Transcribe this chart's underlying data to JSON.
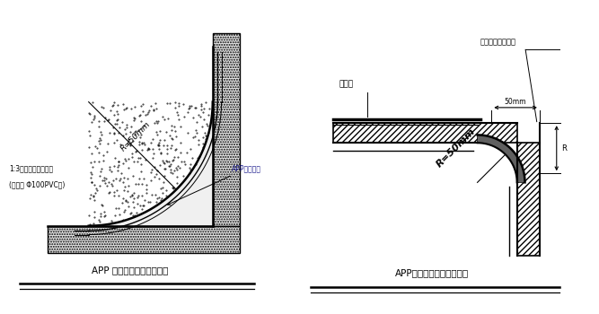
{
  "bg_color": "#ffffff",
  "left_title": "APP 防水卷材基层阴角半径",
  "right_title": "APP防水卷材基层阳角半径",
  "left_label1": "1:3水泥砂浆抹实找平",
  "left_label2": "(用盘头 Φ100PVC管)",
  "left_radius_label": "R=50mm",
  "left_app_label": "APP防水卷材",
  "right_waterproof_label": "防水层",
  "right_sand_label": "此部分分用砂浆抹",
  "right_radius_label": "R=50mm",
  "right_dim_label": "50mm",
  "text_color": "#000000",
  "line_color": "#000000"
}
